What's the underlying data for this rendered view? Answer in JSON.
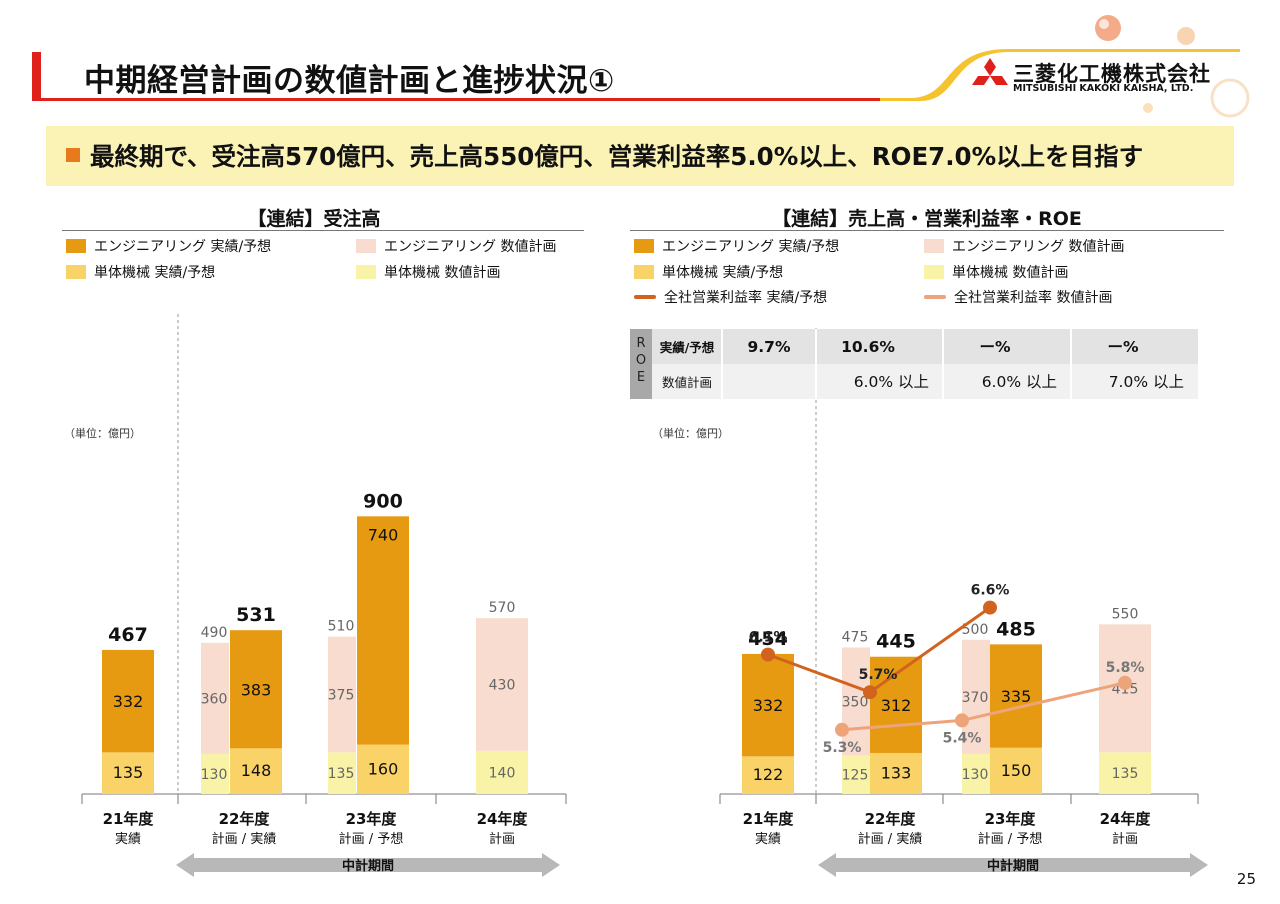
{
  "title": "中期経営計画の数値計画と進捗状況①",
  "company": {
    "name_jp": "三菱化工機株式会社",
    "name_en": "MITSUBISHI KAKOKI KAISHA, LTD."
  },
  "headline": "最終期で、受注高570億円、売上高550億円、営業利益率5.0%以上、ROE7.0%以上を目指す",
  "page_number": "25",
  "colors": {
    "accent_red": "#e0201b",
    "eng_actual": "#e59a12",
    "unit_actual": "#fad368",
    "eng_plan": "#f8dccf",
    "unit_plan": "#f8f3a6",
    "margin_actual": "#d2631f",
    "margin_plan": "#eea47a"
  },
  "chart_data": [
    {
      "type": "bar",
      "title": "【連結】受注高",
      "unit": "（単位：億円）",
      "legend": [
        {
          "label": "エンジニアリング 実績/予想",
          "kind": "eng_actual"
        },
        {
          "label": "エンジニアリング 数値計画",
          "kind": "eng_plan"
        },
        {
          "label": "単体機械 実績/予想",
          "kind": "unit_actual"
        },
        {
          "label": "単体機械 数値計画",
          "kind": "unit_plan"
        }
      ],
      "categories": [
        {
          "year": "21年度",
          "sub": "実績"
        },
        {
          "year": "22年度",
          "sub": "計画 / 実績"
        },
        {
          "year": "23年度",
          "sub": "計画 / 予想"
        },
        {
          "year": "24年度",
          "sub": "計画"
        }
      ],
      "plan": [
        null,
        {
          "unit": 130,
          "eng": 360,
          "total": 490
        },
        {
          "unit": 135,
          "eng": 375,
          "total": 510
        },
        {
          "unit": 140,
          "eng": 430,
          "total": 570
        }
      ],
      "actual": [
        {
          "unit": 135,
          "eng": 332,
          "total": 467
        },
        {
          "unit": 148,
          "eng": 383,
          "total": 531
        },
        {
          "unit": 160,
          "eng": 740,
          "total": 900
        },
        null
      ],
      "period_label": "中計期間"
    },
    {
      "type": "bar+line",
      "title": "【連結】売上高・営業利益率・ROE",
      "unit": "（単位：億円）",
      "legend": [
        {
          "label": "エンジニアリング 実績/予想",
          "kind": "eng_actual"
        },
        {
          "label": "エンジニアリング 数値計画",
          "kind": "eng_plan"
        },
        {
          "label": "単体機械 実績/予想",
          "kind": "unit_actual"
        },
        {
          "label": "単体機械 数値計画",
          "kind": "unit_plan"
        },
        {
          "label": "全社営業利益率 実績/予想",
          "kind": "margin_actual"
        },
        {
          "label": "全社営業利益率 数値計画",
          "kind": "margin_plan"
        }
      ],
      "categories": [
        {
          "year": "21年度",
          "sub": "実績"
        },
        {
          "year": "22年度",
          "sub": "計画 / 実績"
        },
        {
          "year": "23年度",
          "sub": "計画 / 予想"
        },
        {
          "year": "24年度",
          "sub": "計画"
        }
      ],
      "plan": [
        null,
        {
          "unit": 125,
          "eng": 350,
          "total": 475
        },
        {
          "unit": 130,
          "eng": 370,
          "total": 500
        },
        {
          "unit": 135,
          "eng": 415,
          "total": 550
        }
      ],
      "actual": [
        {
          "unit": 122,
          "eng": 332,
          "total": 454
        },
        {
          "unit": 133,
          "eng": 312,
          "total": 445
        },
        {
          "unit": 150,
          "eng": 335,
          "total": 485
        },
        null
      ],
      "margin_actual": [
        {
          "cat": 0,
          "value": 6.1,
          "label": "6.1%"
        },
        {
          "cat": 1,
          "value": 5.7,
          "label": "5.7%"
        },
        {
          "cat": 2,
          "value": 6.6,
          "label": "6.6%"
        }
      ],
      "margin_plan": [
        {
          "cat": 1,
          "value": 5.3,
          "label": "5.3%"
        },
        {
          "cat": 2,
          "value": 5.4,
          "label": "5.4%"
        },
        {
          "cat": 3,
          "value": 5.8,
          "label": "5.8%"
        }
      ],
      "roe_table": {
        "header": "ROE",
        "rows": [
          {
            "label": "実績/予想",
            "values": [
              "9.7%",
              "10.6%",
              "ー%",
              "ー%"
            ]
          },
          {
            "label": "数値計画",
            "values": [
              "",
              "6.0% 以上",
              "6.0% 以上",
              "7.0% 以上"
            ]
          }
        ]
      },
      "period_label": "中計期間"
    }
  ]
}
